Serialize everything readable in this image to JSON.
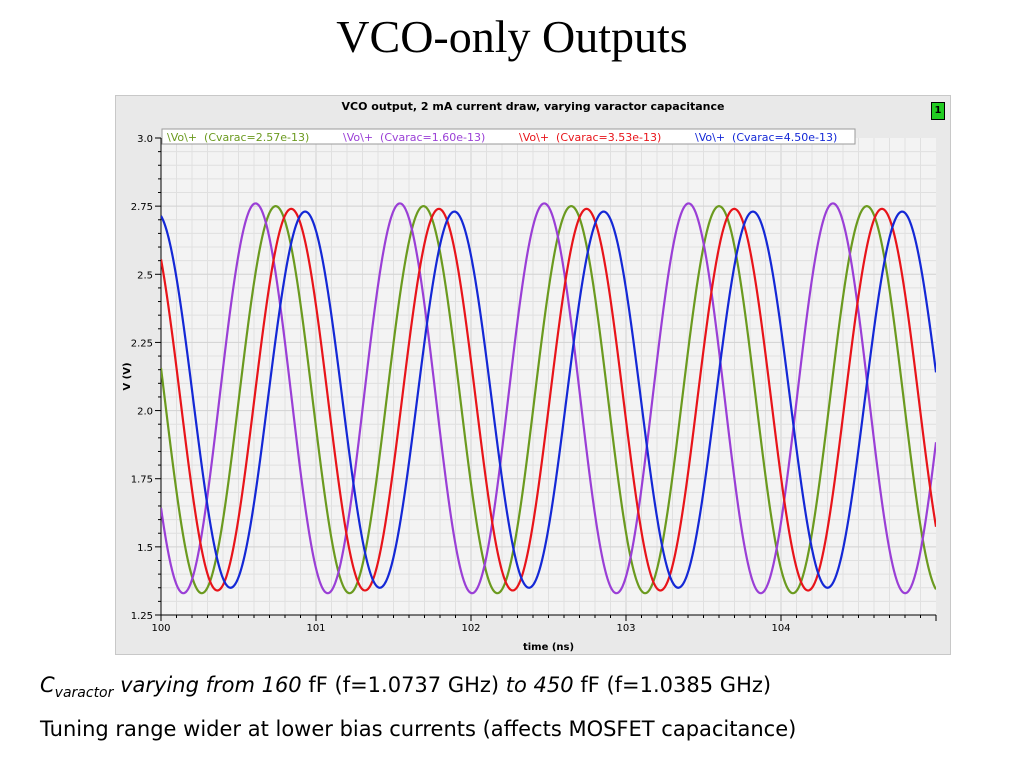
{
  "slide": {
    "title": "VCO-only Outputs"
  },
  "caption": {
    "line1": {
      "c": "C",
      "sub": "varactor",
      "phrase1": " varying from 160",
      "unit1": " fF (f=1.0737 GHz) ",
      "phrase2": "to 450",
      "unit2": " fF (f=1.0385 GHz)"
    },
    "line2": "Tuning range wider at lower bias currents (affects MOSFET capacitance)"
  },
  "window": {
    "badge": "1"
  },
  "chart_data": {
    "type": "line",
    "title": "VCO output, 2 mA current draw, varying varactor capacitance",
    "xlabel": "time (ns)",
    "ylabel": "V (V)",
    "xlim": [
      100,
      105
    ],
    "ylim": [
      1.25,
      3.0
    ],
    "x_ticks": [
      100,
      101,
      102,
      103,
      104
    ],
    "x_tick_labels": [
      "100",
      "101",
      "102",
      "103",
      "104"
    ],
    "y_ticks": [
      1.25,
      1.5,
      1.75,
      2.0,
      2.25,
      2.5,
      2.75,
      3.0
    ],
    "y_tick_labels": [
      "1.25",
      "1.5",
      "1.75",
      "2.0",
      "2.25",
      "2.5",
      "2.75",
      "3.0"
    ],
    "grid": true,
    "legend_position": "top-left",
    "series": [
      {
        "name": "\\Vo\\+  (Cvarac=2.57e-13)",
        "color": "#6b9a1f",
        "min": 1.33,
        "max": 2.75,
        "first_peak_ns": 100.74,
        "period_ns": 0.9534
      },
      {
        "name": "\\Vo\\+  (Cvarac=1.60e-13)",
        "color": "#9a3fd6",
        "min": 1.33,
        "max": 2.76,
        "first_peak_ns": 100.61,
        "period_ns": 0.9313
      },
      {
        "name": "\\Vo\\+  (Cvarac=3.53e-13)",
        "color": "#e8141a",
        "min": 1.34,
        "max": 2.74,
        "first_peak_ns": 100.84,
        "period_ns": 0.9528
      },
      {
        "name": "\\Vo\\+  (Cvarac=4.50e-13)",
        "color": "#1428d6",
        "min": 1.35,
        "max": 2.73,
        "first_peak_ns": 100.93,
        "period_ns": 0.9629
      }
    ]
  }
}
